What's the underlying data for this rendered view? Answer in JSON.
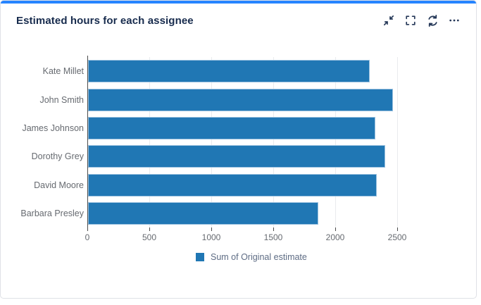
{
  "header": {
    "title": "Estimated hours for each assignee",
    "actions": [
      {
        "name": "collapse",
        "icon": "collapse-icon"
      },
      {
        "name": "fullscreen",
        "icon": "fullscreen-icon"
      },
      {
        "name": "refresh",
        "icon": "refresh-icon"
      },
      {
        "name": "more-options",
        "icon": "ellipsis-icon"
      }
    ]
  },
  "chart_data": {
    "type": "bar",
    "orientation": "horizontal",
    "title": "Estimated hours for each assignee",
    "categories": [
      "Kate Millet",
      "John Smith",
      "James Johnson",
      "Dorothy Grey",
      "David Moore",
      "Barbara Presley"
    ],
    "values": [
      2270,
      2460,
      2320,
      2400,
      2330,
      1860
    ],
    "series_name": "Sum of Original estimate",
    "xlabel": "",
    "ylabel": "",
    "xlim": [
      0,
      2500
    ],
    "xticks": [
      0,
      500,
      1000,
      1500,
      2000,
      2500
    ],
    "grid": true,
    "legend_position": "bottom",
    "bar_color": "#2077b4"
  },
  "legend": {
    "label": "Sum of Original estimate",
    "swatch_color": "#2077b4"
  },
  "colors": {
    "accent": "#2684FF",
    "card_border": "#dfe1e6",
    "title_text": "#172b4d",
    "axis_text": "#666a70",
    "icon": "#253858"
  }
}
